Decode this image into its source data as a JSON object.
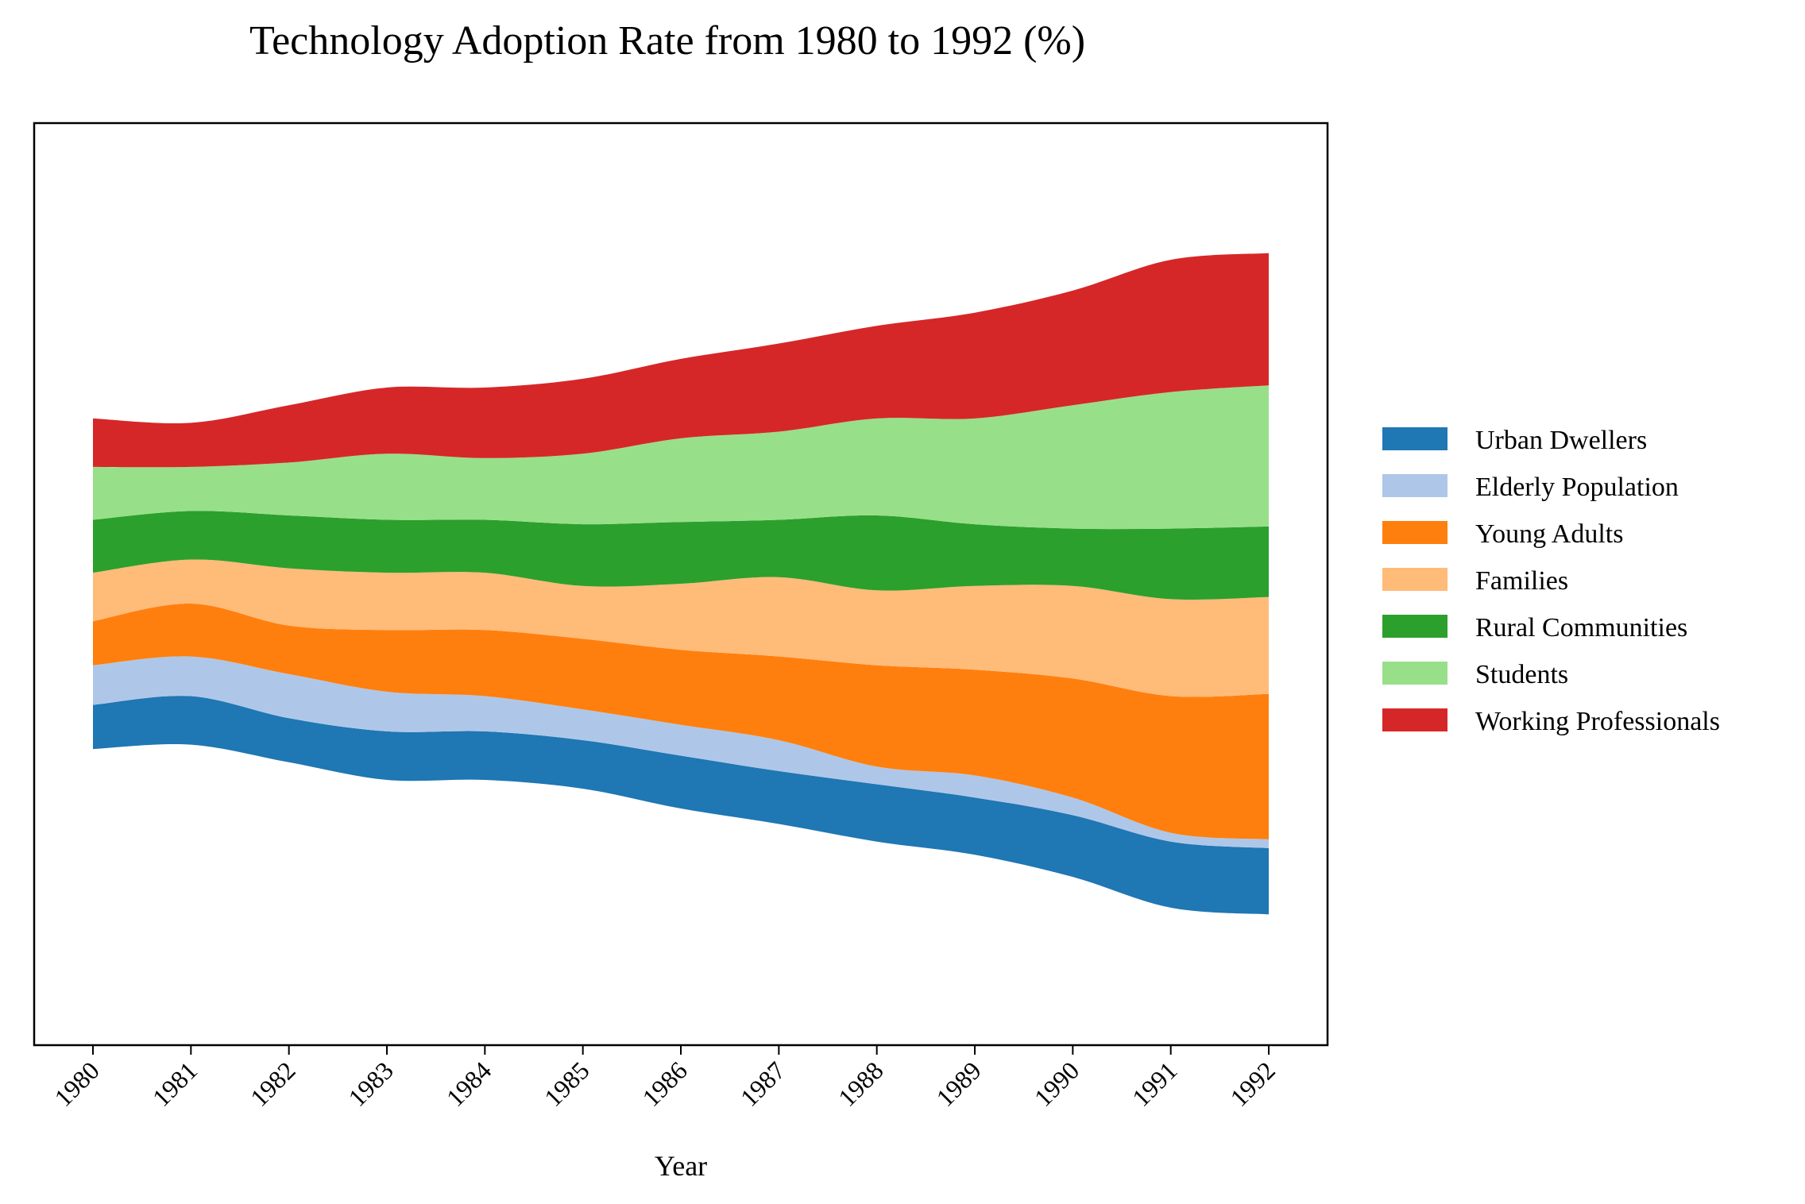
{
  "chart_data": {
    "type": "area",
    "subtype": "streamgraph",
    "title": "Technology Adoption Rate from 1980 to 1992 (%)",
    "xlabel": "Year",
    "ylabel": "",
    "y_axis_visible": false,
    "grid": false,
    "legend_position": "right",
    "x": [
      "1980",
      "1981",
      "1982",
      "1983",
      "1984",
      "1985",
      "1986",
      "1987",
      "1988",
      "1989",
      "1990",
      "1991",
      "1992"
    ],
    "series": [
      {
        "name": "Urban Dwellers",
        "color": "#1f77b4",
        "values": [
          10,
          11,
          10,
          11,
          11,
          11,
          12,
          12,
          13,
          13,
          14,
          15,
          15
        ]
      },
      {
        "name": "Elderly Population",
        "color": "#aec7e8",
        "values": [
          9,
          9,
          10,
          9,
          8,
          7,
          7,
          7,
          4,
          5,
          4,
          2,
          2
        ]
      },
      {
        "name": "Young Adults",
        "color": "#ff7f0e",
        "values": [
          10,
          12,
          11,
          14,
          15,
          16,
          17,
          19,
          23,
          24,
          27,
          31,
          33
        ]
      },
      {
        "name": "Families",
        "color": "#ffbb78",
        "values": [
          11,
          10,
          13,
          13,
          13,
          12,
          15,
          18,
          17,
          19,
          21,
          22,
          22
        ]
      },
      {
        "name": "Rural Communities",
        "color": "#2ca02c",
        "values": [
          12,
          11,
          12,
          12,
          12,
          14,
          14,
          13,
          17,
          14,
          13,
          16,
          16
        ]
      },
      {
        "name": "Students",
        "color": "#98df8a",
        "values": [
          12,
          10,
          12,
          15,
          14,
          16,
          19,
          20,
          22,
          24,
          28,
          31,
          32
        ]
      },
      {
        "name": "Working Professionals",
        "color": "#d62728",
        "values": [
          11,
          10,
          13,
          15,
          16,
          17,
          18,
          20,
          21,
          24,
          26,
          30,
          30
        ]
      }
    ]
  }
}
